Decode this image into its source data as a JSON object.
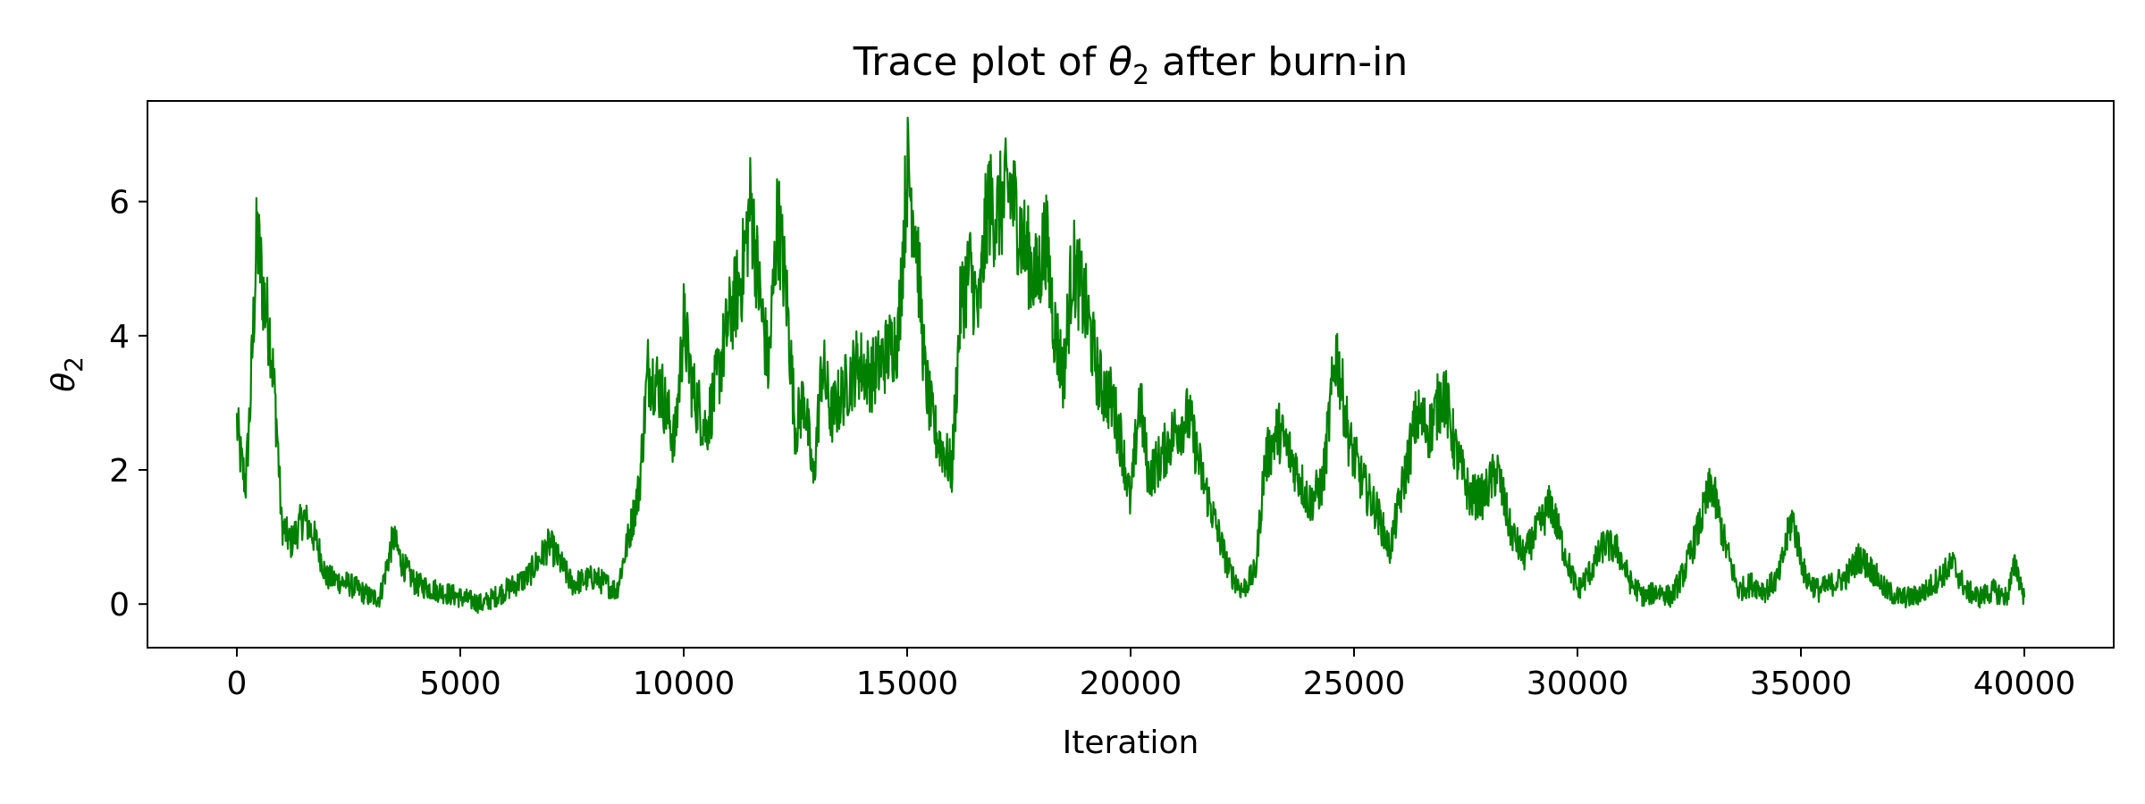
{
  "chart_data": {
    "type": "line",
    "title": "Trace plot of θ₂ after burn-in",
    "title_parts": {
      "prefix": "Trace plot of ",
      "symbol": "θ",
      "subscript": "2",
      "suffix": " after burn-in"
    },
    "xlabel": "Iteration",
    "ylabel": {
      "symbol": "θ",
      "subscript": "2"
    },
    "xlim": [
      -2000,
      42000
    ],
    "ylim": [
      -0.65,
      7.5
    ],
    "xticks": [
      0,
      5000,
      10000,
      15000,
      20000,
      25000,
      30000,
      35000,
      40000
    ],
    "xtick_labels": [
      "0",
      "5000",
      "10000",
      "15000",
      "20000",
      "25000",
      "30000",
      "35000",
      "40000"
    ],
    "yticks": [
      0,
      2,
      4,
      6
    ],
    "ytick_labels": [
      "0",
      "2",
      "4",
      "6"
    ],
    "grid": false,
    "color": "#008000",
    "series": [
      {
        "x": [
          0,
          100,
          200,
          300,
          450,
          600,
          750,
          900,
          1000,
          1200,
          1500,
          1800,
          2000,
          2500,
          3000,
          3200,
          3500,
          3700,
          4000,
          4500,
          5000,
          5500,
          6000,
          6500,
          7000,
          7500,
          8000,
          8500,
          8800,
          9000,
          9200,
          9500,
          9800,
          10000,
          10200,
          10500,
          10800,
          11000,
          11300,
          11500,
          11700,
          11900,
          12100,
          12300,
          12500,
          12700,
          12900,
          13100,
          13300,
          13600,
          13900,
          14200,
          14500,
          14800,
          15000,
          15200,
          15400,
          15600,
          15800,
          16000,
          16200,
          16400,
          16600,
          16800,
          17000,
          17300,
          17600,
          17900,
          18100,
          18300,
          18500,
          18700,
          19000,
          19300,
          19600,
          19800,
          20000,
          20200,
          20400,
          20700,
          21000,
          21300,
          21600,
          21900,
          22200,
          22500,
          22800,
          23000,
          23300,
          23600,
          24000,
          24300,
          24600,
          24900,
          25200,
          25500,
          25800,
          26100,
          26400,
          26700,
          27000,
          27300,
          27600,
          27900,
          28200,
          28500,
          28800,
          29100,
          29400,
          29700,
          30000,
          30300,
          30600,
          30900,
          31200,
          31500,
          31800,
          32100,
          32400,
          32700,
          33000,
          33300,
          33600,
          33900,
          34200,
          34500,
          34800,
          35100,
          35400,
          35700,
          36000,
          36300,
          36600,
          36900,
          37200,
          37500,
          37800,
          38100,
          38400,
          38700,
          39000,
          39300,
          39600,
          39800,
          40000
        ],
        "y": [
          2.7,
          2.1,
          1.8,
          3.0,
          5.5,
          4.6,
          4.0,
          2.6,
          1.2,
          0.9,
          1.3,
          0.9,
          0.4,
          0.3,
          0.1,
          0.1,
          1.0,
          0.6,
          0.3,
          0.2,
          0.1,
          0.0,
          0.2,
          0.4,
          0.9,
          0.3,
          0.4,
          0.2,
          1.1,
          1.7,
          3.5,
          3.2,
          2.4,
          4.2,
          3.2,
          2.6,
          3.5,
          4.2,
          4.9,
          6.0,
          4.6,
          3.5,
          5.8,
          4.6,
          2.6,
          3.1,
          1.8,
          3.6,
          2.8,
          3.2,
          3.6,
          3.4,
          3.7,
          4.0,
          6.5,
          5.6,
          3.4,
          2.6,
          2.3,
          2.0,
          4.5,
          5.0,
          4.3,
          6.0,
          5.8,
          6.2,
          5.4,
          4.8,
          5.5,
          4.1,
          3.4,
          5.1,
          4.4,
          3.3,
          3.0,
          2.4,
          1.5,
          3.1,
          1.9,
          2.2,
          2.6,
          2.8,
          1.9,
          1.2,
          0.5,
          0.2,
          0.5,
          2.1,
          2.6,
          2.2,
          1.5,
          1.8,
          3.8,
          2.4,
          1.8,
          1.4,
          0.8,
          1.8,
          2.8,
          2.6,
          3.2,
          2.2,
          1.6,
          1.6,
          2.0,
          1.1,
          0.7,
          1.1,
          1.5,
          0.8,
          0.2,
          0.5,
          0.9,
          0.8,
          0.3,
          0.1,
          0.2,
          0.1,
          0.5,
          1.1,
          1.8,
          0.9,
          0.2,
          0.3,
          0.2,
          0.4,
          1.3,
          0.4,
          0.2,
          0.3,
          0.4,
          0.7,
          0.5,
          0.2,
          0.1,
          0.1,
          0.2,
          0.4,
          0.6,
          0.2,
          0.1,
          0.2,
          0.1,
          0.6,
          0.1
        ]
      }
    ]
  }
}
